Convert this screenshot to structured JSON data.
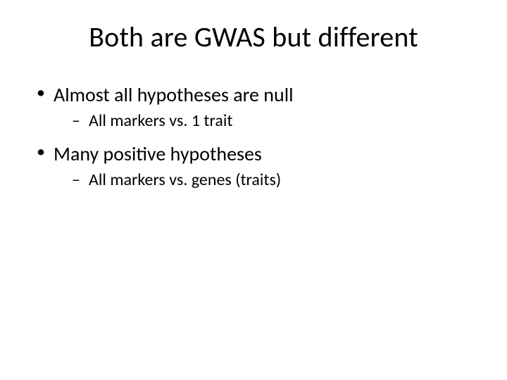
{
  "slide": {
    "background_color": "#ffffff",
    "text_color": "#000000",
    "title": {
      "text": "Both are GWAS but different",
      "fontsize": 40,
      "weight": 400,
      "align": "center"
    },
    "bullets": [
      {
        "text": "Almost all hypotheses are null",
        "fontsize": 28,
        "marker": "•",
        "sub": [
          {
            "text": "All markers vs. 1 trait",
            "fontsize": 24,
            "marker": "–"
          }
        ]
      },
      {
        "text": "Many positive hypotheses",
        "fontsize": 28,
        "marker": "•",
        "sub": [
          {
            "text": "All markers vs. genes (traits)",
            "fontsize": 24,
            "marker": "–"
          }
        ]
      }
    ]
  }
}
